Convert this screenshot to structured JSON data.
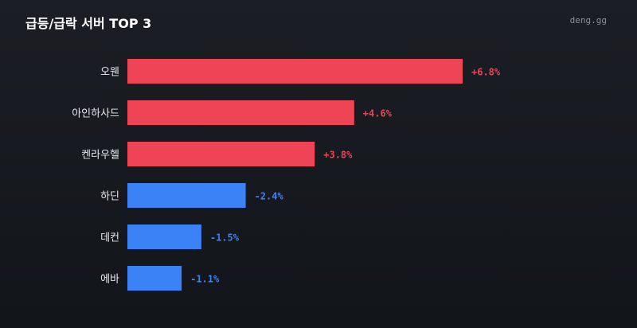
{
  "header": {
    "title": "급등/급락 서버 TOP 3",
    "watermark": "deng.gg"
  },
  "colors": {
    "positive": "#ef4455",
    "negative": "#3b82f6",
    "positive_text": "#ef4455",
    "negative_text": "#3b82f6"
  },
  "chart_data": {
    "type": "bar",
    "orientation": "horizontal",
    "categories": [
      "오웬",
      "아인하사드",
      "켄라우헬",
      "하딘",
      "데컨",
      "에바"
    ],
    "values": [
      6.8,
      4.6,
      3.8,
      -2.4,
      -1.5,
      -1.1
    ],
    "value_labels": [
      "+6.8%",
      "+4.6%",
      "+3.8%",
      "-2.4%",
      "-1.5%",
      "-1.1%"
    ],
    "title": "급등/급락 서버 TOP 3",
    "grid": false
  }
}
